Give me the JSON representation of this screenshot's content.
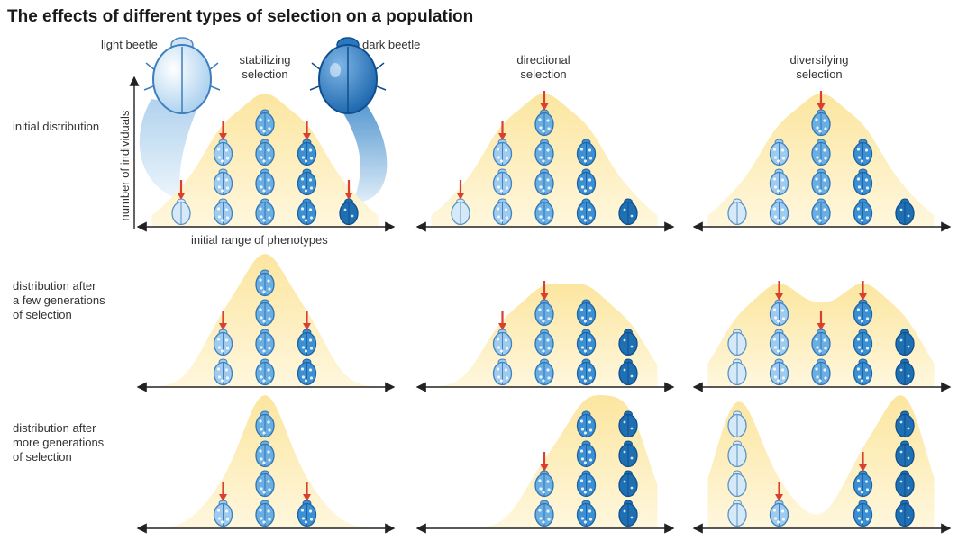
{
  "title": "The effects of different types of selection on a population",
  "columns": [
    {
      "title_line1": "stabilizing",
      "title_line2": "selection"
    },
    {
      "title_line1": "directional",
      "title_line2": "selection"
    },
    {
      "title_line1": "diversifying",
      "title_line2": "selection"
    }
  ],
  "rows": [
    {
      "label_lines": [
        "initial distribution"
      ]
    },
    {
      "label_lines": [
        "distribution after",
        "a few generations",
        "of selection"
      ]
    },
    {
      "label_lines": [
        "distribution after",
        "more generations",
        "of selection"
      ]
    }
  ],
  "light_beetle_label": "light beetle",
  "dark_beetle_label": "dark beetle",
  "y_axis_label": "number of individuals",
  "x_axis_label": "initial range of phenotypes",
  "colors": {
    "curve_fill": "#fbe7a6",
    "beetle_light": "#cfe6f7",
    "beetle_dark": "#1f6fb3",
    "arrow": "#d8412f",
    "axis": "#222222"
  },
  "panels": [
    {
      "row": 0,
      "col": 0,
      "counts": [
        1,
        3,
        4,
        3,
        1
      ],
      "arrows": [
        0,
        1,
        3,
        4
      ]
    },
    {
      "row": 0,
      "col": 1,
      "counts": [
        1,
        3,
        4,
        3,
        1
      ],
      "arrows": [
        0,
        1,
        2
      ]
    },
    {
      "row": 0,
      "col": 2,
      "counts": [
        1,
        3,
        4,
        3,
        1
      ],
      "arrows": [
        2
      ]
    },
    {
      "row": 1,
      "col": 0,
      "counts": [
        0,
        2,
        4,
        2,
        0
      ],
      "arrows": [
        1,
        3
      ]
    },
    {
      "row": 1,
      "col": 1,
      "counts": [
        0,
        2,
        3,
        3,
        2
      ],
      "arrows": [
        1,
        2
      ]
    },
    {
      "row": 1,
      "col": 2,
      "counts": [
        2,
        3,
        2,
        3,
        2
      ],
      "arrows": [
        1,
        2,
        3
      ]
    },
    {
      "row": 2,
      "col": 0,
      "counts": [
        0,
        1,
        4,
        1,
        0
      ],
      "arrows": [
        1,
        3
      ]
    },
    {
      "row": 2,
      "col": 1,
      "counts": [
        0,
        0,
        2,
        4,
        4
      ],
      "arrows": [
        2
      ]
    },
    {
      "row": 2,
      "col": 2,
      "counts": [
        4,
        1,
        0,
        2,
        4
      ],
      "arrows": [
        1,
        3
      ]
    }
  ]
}
